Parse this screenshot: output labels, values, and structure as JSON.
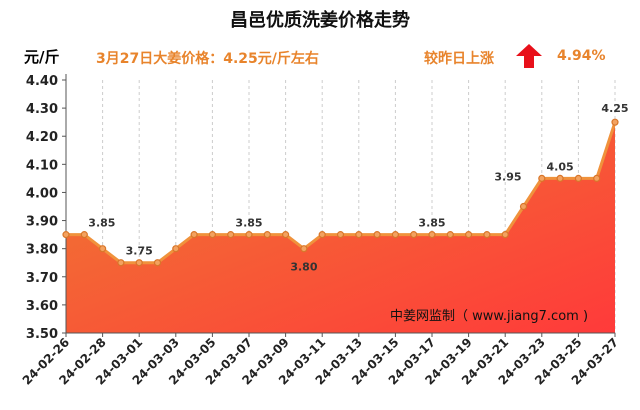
{
  "title": "昌邑优质洗姜价格走势",
  "unit": "元/斤",
  "price_note": "3月27日大姜价格：4.25元/斤左右",
  "change_label": "较昨日上涨",
  "change_value": "4.94%",
  "change_icon": "arrow-up-icon",
  "watermark": "中姜网监制（ www.jiang7.com )",
  "colors": {
    "accent": "#e8842c",
    "arrow": "#e8101a",
    "area_top": "#ff3a3a",
    "area_bottom": "#ee7b32",
    "line": "#f0923c"
  },
  "chart_data": {
    "type": "area",
    "title": "昌邑优质洗姜价格走势",
    "ylabel": "元/斤",
    "xlabel": "",
    "ylim": [
      3.5,
      4.4
    ],
    "yticks": [
      "3.50",
      "3.60",
      "3.70",
      "3.80",
      "3.90",
      "4.00",
      "4.10",
      "4.20",
      "4.30",
      "4.40"
    ],
    "grid": "vertical-dashed",
    "x": [
      "24-02-26",
      "24-02-27",
      "24-02-28",
      "24-02-29",
      "24-03-01",
      "24-03-02",
      "24-03-03",
      "24-03-04",
      "24-03-05",
      "24-03-06",
      "24-03-07",
      "24-03-08",
      "24-03-09",
      "24-03-10",
      "24-03-11",
      "24-03-12",
      "24-03-13",
      "24-03-14",
      "24-03-15",
      "24-03-16",
      "24-03-17",
      "24-03-18",
      "24-03-19",
      "24-03-20",
      "24-03-21",
      "24-03-22",
      "24-03-23",
      "24-03-24",
      "24-03-25",
      "24-03-26",
      "24-03-27"
    ],
    "values": [
      3.85,
      3.85,
      3.8,
      3.75,
      3.75,
      3.75,
      3.8,
      3.85,
      3.85,
      3.85,
      3.85,
      3.85,
      3.85,
      3.8,
      3.85,
      3.85,
      3.85,
      3.85,
      3.85,
      3.85,
      3.85,
      3.85,
      3.85,
      3.85,
      3.85,
      3.95,
      4.05,
      4.05,
      4.05,
      4.05,
      4.25
    ],
    "xtick_labels": [
      "24-02-26",
      "24-02-28",
      "24-03-01",
      "24-03-03",
      "24-03-05",
      "24-03-07",
      "24-03-09",
      "24-03-11",
      "24-03-13",
      "24-03-15",
      "24-03-17",
      "24-03-19",
      "24-03-21",
      "24-03-23",
      "24-03-25",
      "24-03-27"
    ],
    "annotations": [
      {
        "index": 1,
        "text": "3.85"
      },
      {
        "index": 4,
        "text": "3.75"
      },
      {
        "index": 10,
        "text": "3.85"
      },
      {
        "index": 13,
        "text": "3.80"
      },
      {
        "index": 20,
        "text": "3.85"
      },
      {
        "index": 25,
        "text": "3.95"
      },
      {
        "index": 27,
        "text": "4.05"
      },
      {
        "index": 30,
        "text": "4.25"
      }
    ]
  }
}
